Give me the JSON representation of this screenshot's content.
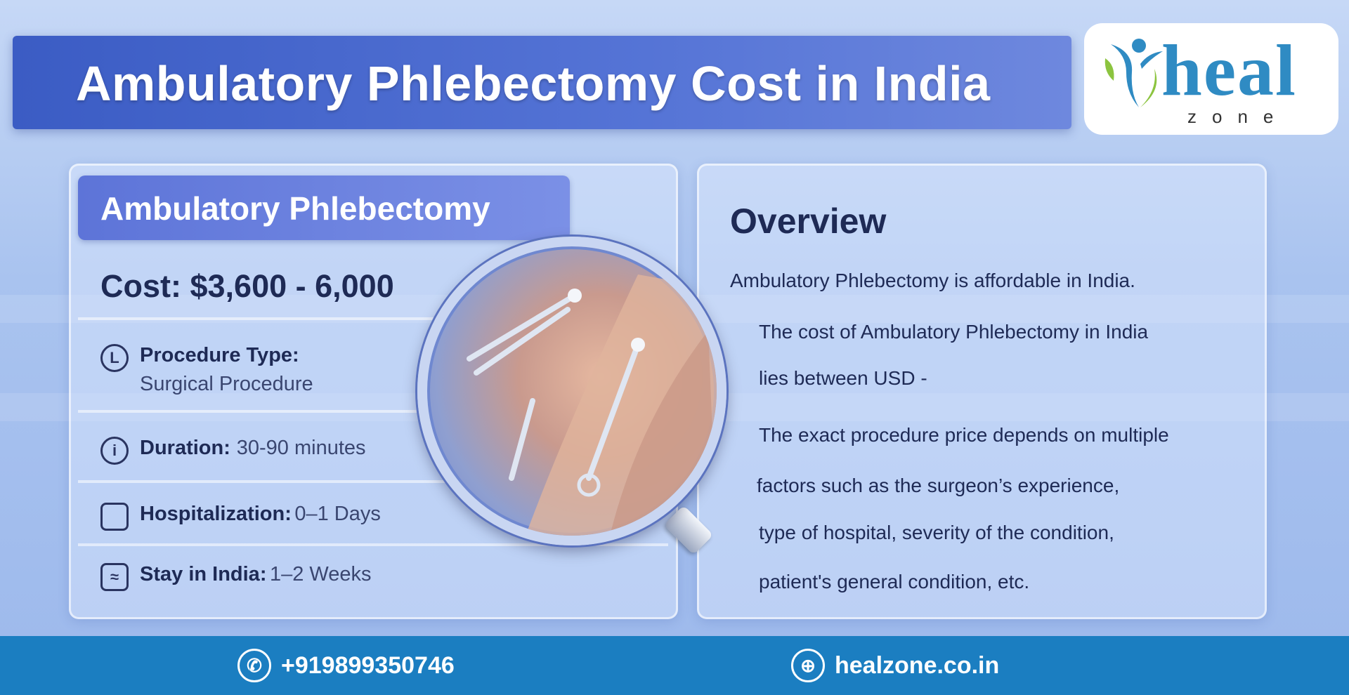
{
  "title": "Ambulatory Phlebectomy Cost in India",
  "logo": {
    "main": "heal",
    "sub": "zone",
    "colors": {
      "text": "#2f8bc3",
      "leaf": "#8cc43f"
    }
  },
  "left": {
    "header": "Ambulatory Phlebectomy",
    "cost": "Cost: $3,600 - 6,000",
    "items": [
      {
        "icon": "clock-icon",
        "label": "Procedure Type:",
        "value": "Surgical Procedure"
      },
      {
        "icon": "info-icon",
        "label": "Duration:",
        "value": "30-90 minutes"
      },
      {
        "icon": "chat-icon",
        "label": "Hospitalization:",
        "value": "0–1 Days"
      },
      {
        "icon": "calendar-icon",
        "label": "Stay in India:",
        "value": "1–2 Weeks"
      }
    ]
  },
  "overview": {
    "title": "Overview",
    "lines": [
      "Ambulatory Phlebectomy is affordable in India.",
      "The cost of Ambulatory Phlebectomy in India",
      "lies between USD -",
      "The exact procedure price depends on multiple",
      "factors such as the surgeon’s experience,",
      "type of hospital, severity of the condition,",
      "patient's general condition, etc."
    ]
  },
  "footer": {
    "phone": "+919899350746",
    "website": "healzone.co.in",
    "color": "#1b7ec1"
  }
}
